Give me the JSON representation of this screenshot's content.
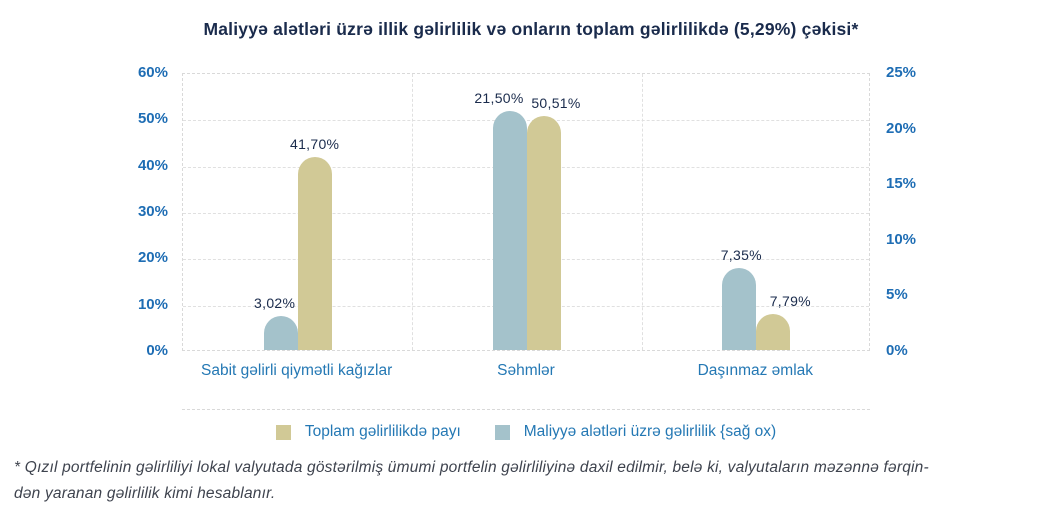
{
  "title": "Maliyyə alətləri üzrə illik gəlirlilik və onların toplam gəlirlilikdə (5,29%) çəkisi*",
  "footnote": {
    "line1": "* Qızıl portfelinin gəlirliliyi lokal valyutada göstərilmiş ümumi portfelin gəlirliliyinə daxil edilmir, belə ki, valyutaların məzənnə fərqin-",
    "line2": "dən yaranan gəlirlilik kimi hesablanır."
  },
  "colors": {
    "tan_bar": "#d1c996",
    "blue_bar": "#a4c2cb",
    "axis_tick_blue": "#1e6db4",
    "category_blue": "#2478b4",
    "title_navy": "#1a2b4c",
    "grid_gray": "#e0e0e0"
  },
  "chart_data": {
    "type": "bar",
    "title": "Maliyyə alətləri üzrə illik gəlirlilik və onların toplam gəlirlilikdə (5,29%) çəkisi*",
    "categories": [
      "Sabit gəlirli qiymətli kağızlar",
      "Səhmlər",
      "Daşınmaz əmlak"
    ],
    "series": [
      {
        "name": "Maliyyə alətləri üzrə gəlirlilik {sağ ox)",
        "axis": "right",
        "color": "#a4c2cb",
        "values": [
          3.02,
          21.5,
          7.35
        ],
        "value_labels": [
          "3,02%",
          "21,50%",
          "7,35%"
        ]
      },
      {
        "name": "Toplam gəlirlilikdə payı",
        "axis": "left",
        "color": "#d1c996",
        "values": [
          41.7,
          50.51,
          7.79
        ],
        "value_labels": [
          "41,70%",
          "50,51%",
          "7,79%"
        ]
      }
    ],
    "left_axis": {
      "min": 0,
      "max": 60,
      "ticks": [
        "60%",
        "50%",
        "40%",
        "30%",
        "20%",
        "10%",
        "0%"
      ]
    },
    "right_axis": {
      "min": 0,
      "max": 25,
      "ticks": [
        "25%",
        "20%",
        "15%",
        "10%",
        "5%",
        "0%"
      ]
    },
    "grid": "dashed, horizontal every 10% (left axis) and vertical between categories",
    "legend_position": "bottom",
    "legend": [
      {
        "label": "Toplam gəlirlilikdə payı",
        "color": "#d1c996"
      },
      {
        "label": "Maliyyə alətləri üzrə gəlirlilik {sağ ox)",
        "color": "#a4c2cb"
      }
    ]
  }
}
